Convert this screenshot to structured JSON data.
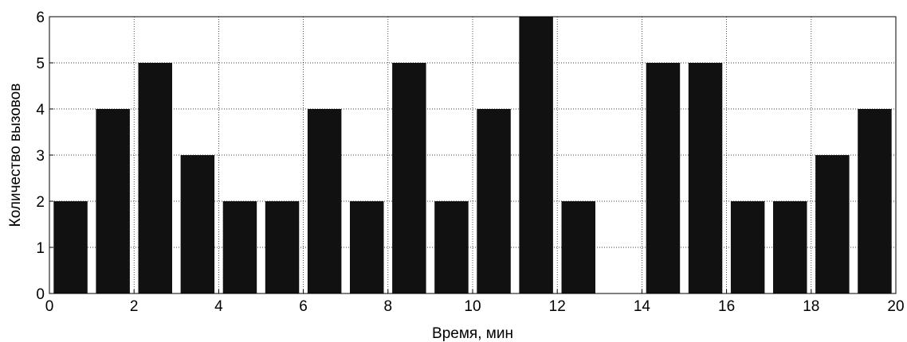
{
  "chart_data": {
    "type": "bar",
    "title": "",
    "xlabel": "Время, мин",
    "ylabel": "Количество вызовов",
    "x": [
      0.5,
      1.5,
      2.5,
      3.5,
      4.5,
      5.5,
      6.5,
      7.5,
      8.5,
      9.5,
      10.5,
      11.5,
      12.5,
      13.5,
      14.5,
      15.5,
      16.5,
      17.5,
      18.5,
      19.5
    ],
    "values": [
      2,
      4,
      5,
      3,
      2,
      2,
      4,
      2,
      5,
      2,
      4,
      6,
      2,
      0,
      5,
      5,
      2,
      2,
      3,
      4
    ],
    "bar_width": 0.8,
    "xlim": [
      0,
      20
    ],
    "ylim": [
      0,
      6
    ],
    "xticks": [
      "0",
      "2",
      "4",
      "6",
      "8",
      "10",
      "12",
      "14",
      "16",
      "18",
      "20"
    ],
    "yticks": [
      "0",
      "1",
      "2",
      "3",
      "4",
      "5",
      "6"
    ],
    "grid": true,
    "bar_color": "#111111"
  }
}
